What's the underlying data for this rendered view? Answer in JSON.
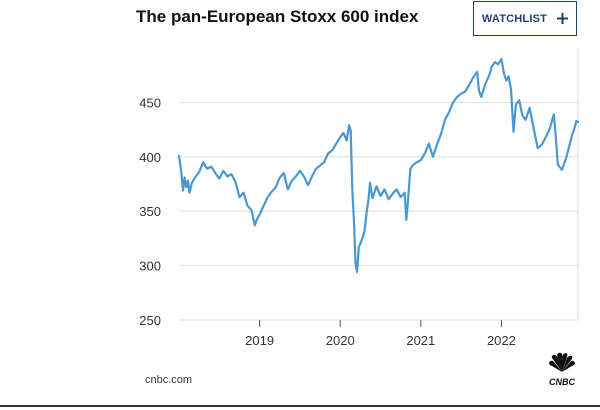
{
  "header": {
    "title": "The pan-European Stoxx 600 index",
    "watchlist_label": "WATCHLIST"
  },
  "footer": {
    "source": "cnbc.com",
    "logo_text": "CNBC"
  },
  "colors": {
    "line": "#4a97d2",
    "grid": "#dddddd",
    "button_border": "#1f3f73"
  },
  "icons": [
    "plus-icon",
    "cnbc-peacock-logo"
  ],
  "chart_data": {
    "type": "line",
    "title": "The pan-European Stoxx 600 index",
    "xlabel": "",
    "ylabel": "",
    "xlim": [
      2018.0,
      2022.95
    ],
    "ylim": [
      250,
      500
    ],
    "yticks": [
      250,
      300,
      350,
      400,
      450
    ],
    "xticks": [
      "2019",
      "2020",
      "2021",
      "2022"
    ],
    "grid": true,
    "series": [
      {
        "points": [
          [
            2018.0,
            401
          ],
          [
            2018.03,
            385
          ],
          [
            2018.05,
            369
          ],
          [
            2018.07,
            381
          ],
          [
            2018.09,
            372
          ],
          [
            2018.11,
            378
          ],
          [
            2018.13,
            367
          ],
          [
            2018.16,
            376
          ],
          [
            2018.2,
            381
          ],
          [
            2018.25,
            386
          ],
          [
            2018.3,
            395
          ],
          [
            2018.35,
            389
          ],
          [
            2018.4,
            391
          ],
          [
            2018.45,
            385
          ],
          [
            2018.5,
            380
          ],
          [
            2018.55,
            387
          ],
          [
            2018.6,
            382
          ],
          [
            2018.65,
            384
          ],
          [
            2018.7,
            377
          ],
          [
            2018.75,
            363
          ],
          [
            2018.8,
            367
          ],
          [
            2018.85,
            355
          ],
          [
            2018.9,
            351
          ],
          [
            2018.94,
            337
          ],
          [
            2018.97,
            343
          ],
          [
            2019.0,
            347
          ],
          [
            2019.05,
            355
          ],
          [
            2019.1,
            363
          ],
          [
            2019.15,
            368
          ],
          [
            2019.2,
            372
          ],
          [
            2019.25,
            381
          ],
          [
            2019.3,
            385
          ],
          [
            2019.35,
            370
          ],
          [
            2019.4,
            378
          ],
          [
            2019.45,
            382
          ],
          [
            2019.5,
            387
          ],
          [
            2019.55,
            382
          ],
          [
            2019.6,
            374
          ],
          [
            2019.65,
            382
          ],
          [
            2019.7,
            389
          ],
          [
            2019.75,
            392
          ],
          [
            2019.8,
            395
          ],
          [
            2019.85,
            403
          ],
          [
            2019.9,
            406
          ],
          [
            2019.95,
            412
          ],
          [
            2020.0,
            418
          ],
          [
            2020.04,
            422
          ],
          [
            2020.08,
            415
          ],
          [
            2020.11,
            429
          ],
          [
            2020.13,
            424
          ],
          [
            2020.15,
            370
          ],
          [
            2020.17,
            342
          ],
          [
            2020.19,
            302
          ],
          [
            2020.21,
            294
          ],
          [
            2020.23,
            317
          ],
          [
            2020.26,
            322
          ],
          [
            2020.3,
            331
          ],
          [
            2020.33,
            350
          ],
          [
            2020.35,
            360
          ],
          [
            2020.37,
            376
          ],
          [
            2020.4,
            362
          ],
          [
            2020.45,
            373
          ],
          [
            2020.5,
            364
          ],
          [
            2020.55,
            370
          ],
          [
            2020.6,
            361
          ],
          [
            2020.65,
            366
          ],
          [
            2020.7,
            370
          ],
          [
            2020.75,
            363
          ],
          [
            2020.8,
            367
          ],
          [
            2020.82,
            342
          ],
          [
            2020.84,
            358
          ],
          [
            2020.87,
            389
          ],
          [
            2020.9,
            392
          ],
          [
            2020.95,
            395
          ],
          [
            2021.0,
            397
          ],
          [
            2021.05,
            403
          ],
          [
            2021.1,
            412
          ],
          [
            2021.15,
            400
          ],
          [
            2021.2,
            411
          ],
          [
            2021.25,
            421
          ],
          [
            2021.3,
            434
          ],
          [
            2021.35,
            441
          ],
          [
            2021.4,
            450
          ],
          [
            2021.45,
            455
          ],
          [
            2021.5,
            458
          ],
          [
            2021.55,
            460
          ],
          [
            2021.6,
            466
          ],
          [
            2021.65,
            473
          ],
          [
            2021.7,
            478
          ],
          [
            2021.72,
            461
          ],
          [
            2021.75,
            455
          ],
          [
            2021.8,
            467
          ],
          [
            2021.85,
            475
          ],
          [
            2021.88,
            483
          ],
          [
            2021.92,
            487
          ],
          [
            2021.96,
            485
          ],
          [
            2022.0,
            490
          ],
          [
            2022.03,
            477
          ],
          [
            2022.06,
            470
          ],
          [
            2022.09,
            474
          ],
          [
            2022.12,
            461
          ],
          [
            2022.15,
            423
          ],
          [
            2022.18,
            448
          ],
          [
            2022.22,
            452
          ],
          [
            2022.26,
            438
          ],
          [
            2022.3,
            434
          ],
          [
            2022.35,
            445
          ],
          [
            2022.4,
            426
          ],
          [
            2022.45,
            408
          ],
          [
            2022.5,
            411
          ],
          [
            2022.55,
            418
          ],
          [
            2022.6,
            426
          ],
          [
            2022.65,
            439
          ],
          [
            2022.67,
            423
          ],
          [
            2022.7,
            393
          ],
          [
            2022.75,
            388
          ],
          [
            2022.8,
            398
          ],
          [
            2022.85,
            412
          ],
          [
            2022.88,
            421
          ],
          [
            2022.9,
            425
          ],
          [
            2022.93,
            433
          ],
          [
            2022.95,
            432
          ]
        ]
      }
    ]
  }
}
